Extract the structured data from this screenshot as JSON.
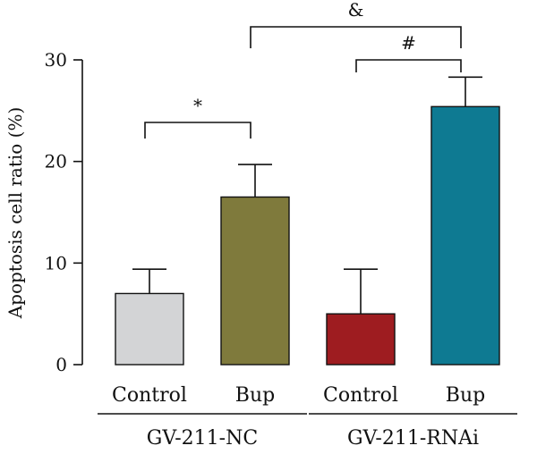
{
  "chart_data": {
    "type": "bar",
    "title": "",
    "xlabel": "",
    "ylabel": "Apoptosis cell ratio (%)",
    "ylim": [
      0,
      30
    ],
    "yticks": [
      0,
      10,
      20,
      30
    ],
    "grid": false,
    "categories": [
      "Control",
      "Bup",
      "Control",
      "Bup"
    ],
    "values": [
      7.0,
      16.5,
      5.0,
      25.4
    ],
    "errors": [
      2.4,
      3.2,
      4.4,
      2.9
    ],
    "bar_colors": [
      "#d3d4d6",
      "#7f7a3c",
      "#9e1c20",
      "#0e7a92"
    ],
    "groups": [
      {
        "label": "GV-211-NC",
        "members": [
          0,
          1
        ]
      },
      {
        "label": "GV-211-RNAi",
        "members": [
          2,
          3
        ]
      }
    ],
    "significance": [
      {
        "from": 0,
        "to": 1,
        "symbol": "*"
      },
      {
        "from": 2,
        "to": 3,
        "symbol": "#"
      },
      {
        "from": 1,
        "to": 3,
        "symbol": "&"
      }
    ]
  }
}
